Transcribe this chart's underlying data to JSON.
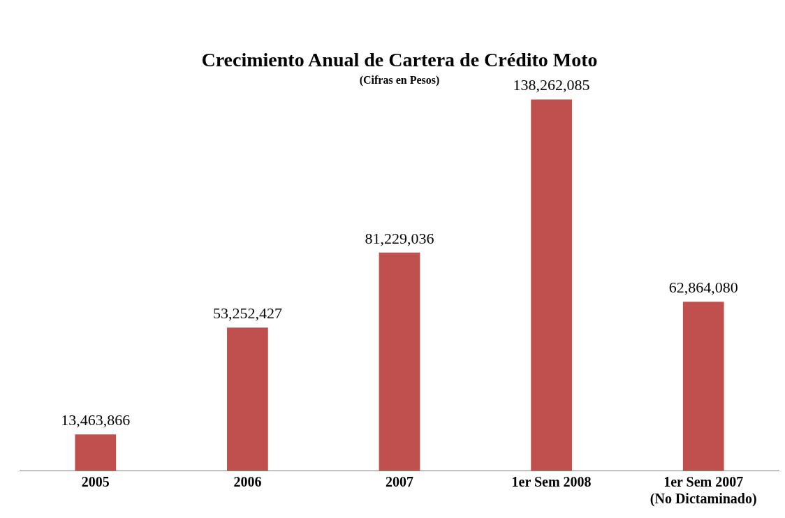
{
  "chart_data": {
    "type": "bar",
    "title": "Crecimiento Anual de Cartera de Crédito Moto",
    "subtitle": "(Cifras en Pesos)",
    "categories": [
      "2005",
      "2006",
      "2007",
      "1er Sem 2008",
      "1er Sem 2007\n(No Dictaminado)"
    ],
    "values": [
      13463866,
      53252427,
      81229036,
      138262085,
      62864080
    ],
    "value_labels": [
      "13,463,866",
      "53,252,427",
      "81,229,036",
      "138,262,085",
      "62,864,080"
    ],
    "color": "#c0504d",
    "grid": false,
    "legend": false
  }
}
